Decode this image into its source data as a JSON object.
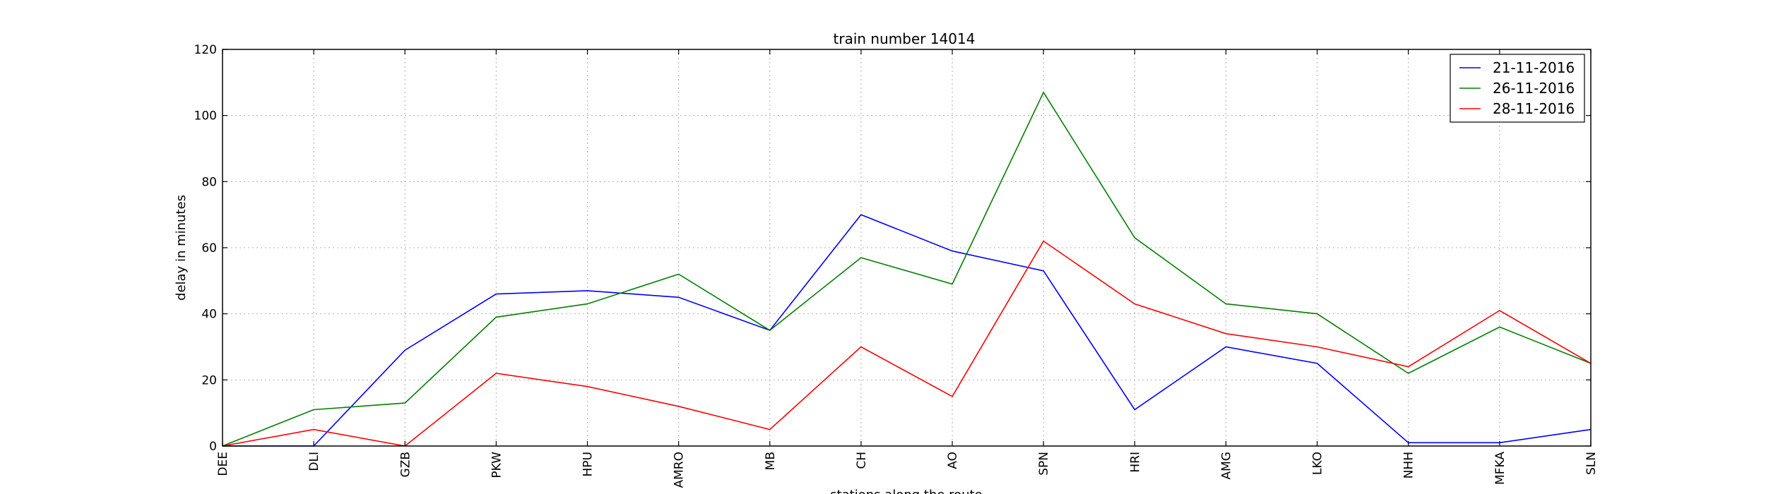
{
  "chart_data": {
    "type": "line",
    "title": "train number 14014",
    "xlabel": "stations along the route",
    "ylabel": "delay in minutes",
    "ylim": [
      0,
      120
    ],
    "yticks": [
      0,
      20,
      40,
      60,
      80,
      100,
      120
    ],
    "grid": true,
    "legend_position": "top-right",
    "categories": [
      "DEE",
      "DLI",
      "GZB",
      "PKW",
      "HPU",
      "AMRO",
      "MB",
      "CH",
      "AO",
      "SPN",
      "HRI",
      "AMG",
      "LKO",
      "NHH",
      "MFKA",
      "SLN"
    ],
    "series": [
      {
        "name": "21-11-2016",
        "color": "#0000ff",
        "values": [
          0,
          0,
          29,
          46,
          47,
          45,
          35,
          70,
          59,
          53,
          11,
          30,
          25,
          1,
          1,
          5
        ]
      },
      {
        "name": "26-11-2016",
        "color": "#008000",
        "values": [
          0,
          11,
          13,
          39,
          43,
          52,
          35,
          57,
          49,
          107,
          63,
          43,
          40,
          22,
          36,
          25
        ]
      },
      {
        "name": "28-11-2016",
        "color": "#ff0000",
        "values": [
          0,
          5,
          0,
          22,
          18,
          12,
          5,
          30,
          15,
          62,
          43,
          34,
          30,
          24,
          41,
          25
        ]
      }
    ]
  }
}
